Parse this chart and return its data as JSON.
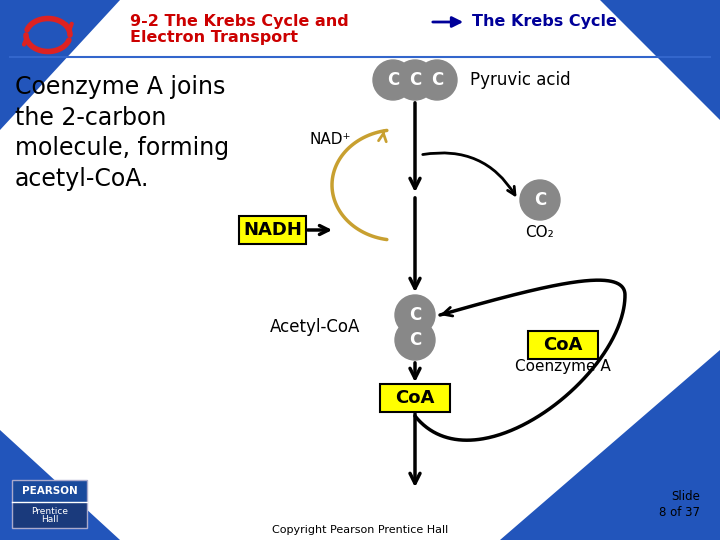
{
  "title_red": "9-2 The Krebs Cycle and",
  "title_blue": "The Krebs Cycle",
  "title_red2": "Electron Transport",
  "body_text": "Coenzyme A joins\nthe 2-carbon\nmolecule, forming\nacetyl-CoA.",
  "bg_color": "#ffffff",
  "blue_corner_color": "#2255aa",
  "title_red_color": "#cc0000",
  "title_blue_color": "#000099",
  "gray_circle_color": "#888888",
  "yellow_box_color": "#ffff00",
  "arrow_color": "#000000",
  "gold_arrow_color": "#c8a030",
  "copyright_text": "Copyright Pearson Prentice Hall",
  "slide_text": "Slide\n8 of 37",
  "nad_label": "NAD⁺",
  "nadh_label": "NADH",
  "co2_label": "CO₂",
  "pyruvic_label": "Pyruvic acid",
  "acetylcoa_label": "Acetyl-CoA",
  "coa_label": "CoA",
  "coenzyme_label": "Coenzyme A",
  "c_label": "C",
  "pearson_top_color": "#1a4a9c",
  "pearson_bottom_color": "#1a3a7c"
}
